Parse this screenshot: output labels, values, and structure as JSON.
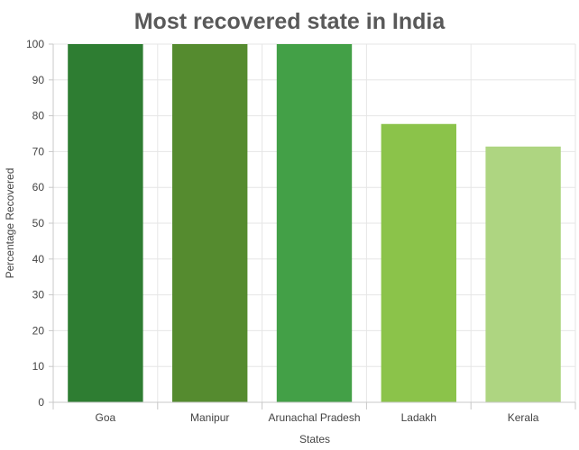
{
  "chart_data": {
    "type": "bar",
    "title": "Most recovered state in India",
    "xlabel": "States",
    "ylabel": "Percentage Recovered",
    "categories": [
      "Goa",
      "Manipur",
      "Arunachal Pradesh",
      "Ladakh",
      "Kerala"
    ],
    "values": [
      100,
      100,
      100,
      77.7,
      71.4
    ],
    "colors": [
      "#2e7d32",
      "#558b2f",
      "#43a047",
      "#8bc34a",
      "#aed581"
    ],
    "ylim": [
      0,
      100
    ],
    "yticks": [
      0,
      10,
      20,
      30,
      40,
      50,
      60,
      70,
      80,
      90,
      100
    ],
    "grid": true,
    "legend": "none"
  }
}
